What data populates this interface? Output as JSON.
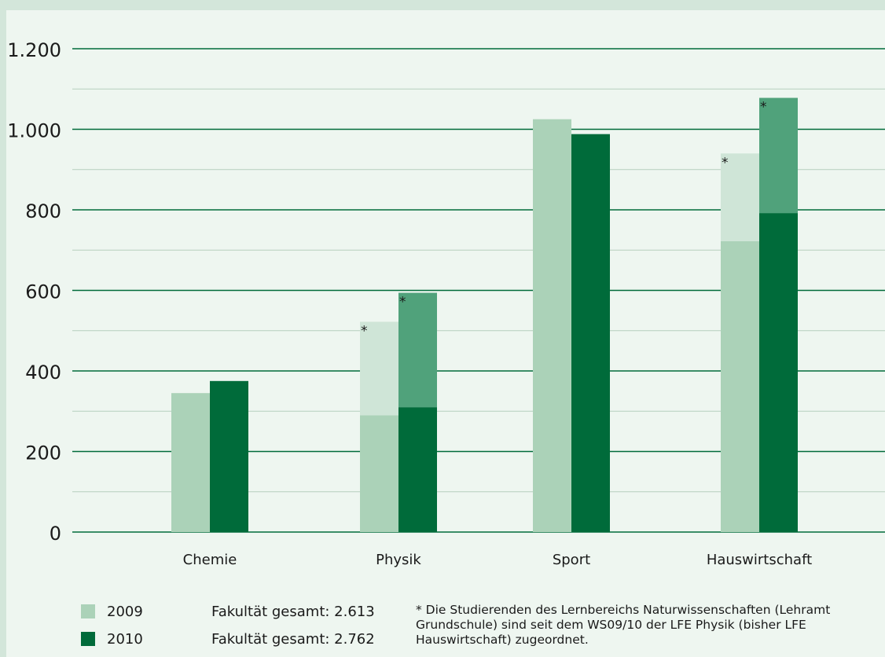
{
  "chart_data": {
    "type": "bar",
    "stacked_groups": true,
    "categories": [
      "Chemie",
      "Physik",
      "Sport",
      "Hauswirtschaft"
    ],
    "ylim": [
      0,
      1200
    ],
    "yticks": [
      0,
      200,
      400,
      600,
      800,
      1000,
      1200
    ],
    "ytick_labels": [
      "0",
      "200",
      "400",
      "600",
      "800",
      "1.000",
      "1.200"
    ],
    "grid": true,
    "series": [
      {
        "name": "2009",
        "base_values": [
          345,
          290,
          1025,
          722
        ],
        "added_values": [
          0,
          232,
          0,
          218
        ],
        "total_values": [
          345,
          522,
          1025,
          940
        ],
        "marked": [
          false,
          true,
          false,
          true
        ]
      },
      {
        "name": "2010",
        "base_values": [
          375,
          310,
          988,
          792
        ],
        "added_values": [
          0,
          284,
          0,
          286
        ],
        "total_values": [
          375,
          594,
          988,
          1078
        ],
        "marked": [
          false,
          true,
          false,
          true
        ]
      }
    ],
    "marker_symbol": "*"
  },
  "legend": [
    {
      "label": "2009",
      "total": "Fakultät gesamt: 2.613"
    },
    {
      "label": "2010",
      "total": "Fakultät gesamt: 2.762"
    }
  ],
  "footnote": "* Die Studierenden des Lernbereichs Naturwissenschaften (Lehramt Grundschule) sind seit dem WS09/10 der LFE Physik (bisher LFE Hauswirtschaft) zugeordnet.",
  "colors": {
    "background": "#d3e6da",
    "panel": "#eef6f0",
    "grid_major": "#006b3a",
    "grid_minor": "#b5cfbe",
    "series_2009_base": "#abd2b8",
    "series_2009_added": "#cfe5d7",
    "series_2010_base": "#006b3a",
    "series_2010_added": "#50a27b"
  }
}
